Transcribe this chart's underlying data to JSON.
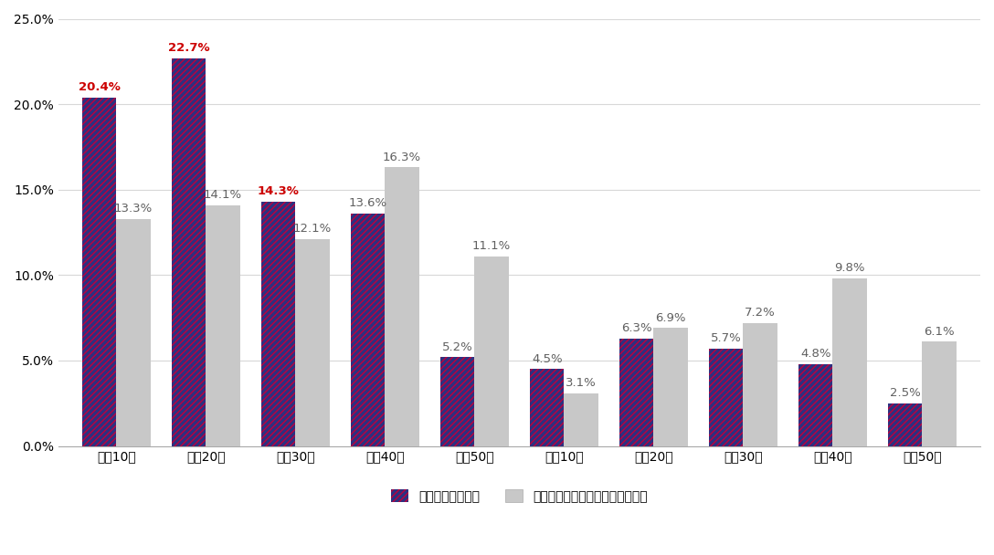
{
  "categories": [
    "男性10代",
    "男性20代",
    "男性30代",
    "男性40代",
    "男性50代",
    "女性10代",
    "女性20代",
    "女性30代",
    "女性40代",
    "女性50代"
  ],
  "series1_values": [
    20.4,
    22.7,
    14.3,
    13.6,
    5.2,
    4.5,
    6.3,
    5.7,
    4.8,
    2.5
  ],
  "series2_values": [
    13.3,
    14.1,
    12.1,
    16.3,
    11.1,
    3.1,
    6.9,
    7.2,
    9.8,
    6.1
  ],
  "series1_label": "国立競技場来場者",
  "series2_label": "ノエビアスタジアム神戸ユーザー",
  "series1_color": "#2d3080",
  "series1_hatch_color": "#c0003c",
  "series2_color": "#c8c8c8",
  "highlight_indices": [
    0,
    1,
    2
  ],
  "highlight_color": "#cc0000",
  "ylim": [
    0,
    25.0
  ],
  "yticks": [
    0.0,
    5.0,
    10.0,
    15.0,
    20.0,
    25.0
  ],
  "bar_width": 0.38,
  "figsize": [
    10.88,
    6.08
  ],
  "dpi": 100,
  "background_color": "#ffffff",
  "grid_color": "#d8d8d8",
  "label_fontsize": 9.5,
  "tick_fontsize": 10,
  "legend_fontsize": 10
}
